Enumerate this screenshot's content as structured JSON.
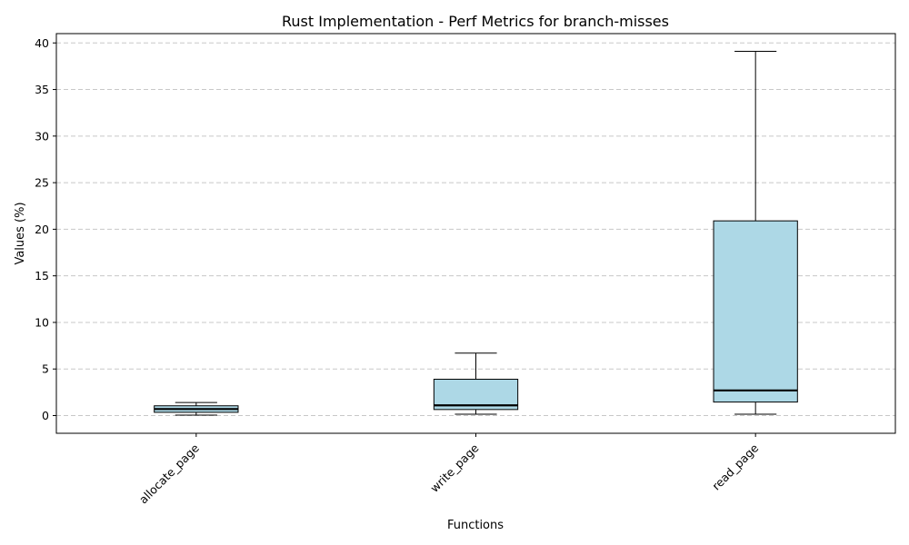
{
  "chart_data": {
    "type": "box",
    "title": "Rust Implementation - Perf Metrics for branch-misses",
    "xlabel": "Functions",
    "ylabel": "Values (%)",
    "ylim": [
      -1.9,
      41.0
    ],
    "yticks": [
      0,
      5,
      10,
      15,
      20,
      25,
      30,
      35,
      40
    ],
    "grid": "horizontal-dashed",
    "box_color": "#add8e6",
    "categories": [
      "allocate_page",
      "write_page",
      "read_page"
    ],
    "boxes": [
      {
        "category": "allocate_page",
        "whisker_low": 0.05,
        "q1": 0.35,
        "median": 0.7,
        "q3": 1.05,
        "whisker_high": 1.4
      },
      {
        "category": "write_page",
        "whisker_low": 0.15,
        "q1": 0.65,
        "median": 1.1,
        "q3": 3.9,
        "whisker_high": 6.7
      },
      {
        "category": "read_page",
        "whisker_low": 0.15,
        "q1": 1.45,
        "median": 2.7,
        "q3": 20.9,
        "whisker_high": 39.1
      }
    ]
  }
}
